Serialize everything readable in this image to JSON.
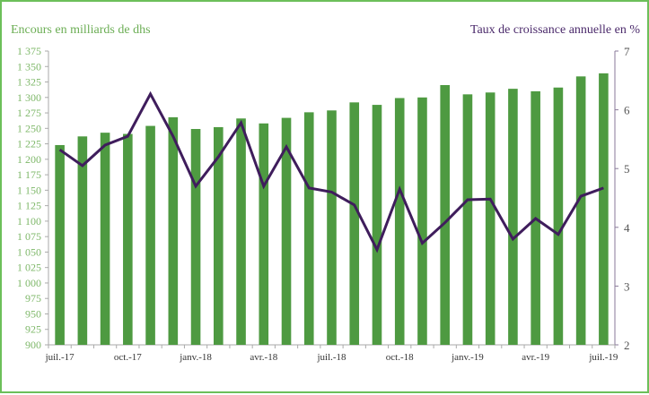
{
  "chart_data": {
    "type": "bar+line",
    "ylabel_left": "Encours en milliards de dhs",
    "ylabel_right": "Taux de croissance annuelle en %",
    "ylim_left": [
      900,
      1375
    ],
    "ylim_right": [
      2,
      7
    ],
    "yticks_left": [
      "900",
      "925",
      "950",
      "975",
      "1 000",
      "1 025",
      "1 050",
      "1 075",
      "1 100",
      "1 125",
      "1 150",
      "1 175",
      "1 200",
      "1 225",
      "1 250",
      "1 275",
      "1 300",
      "1 325",
      "1 350",
      "1 375"
    ],
    "yticks_right": [
      "2",
      "3",
      "4",
      "5",
      "6",
      "7"
    ],
    "x_tick_labels": [
      "juil.-17",
      "oct.-17",
      "janv.-18",
      "avr.-18",
      "juil.-18",
      "oct.-18",
      "janv.-19",
      "avr.-19",
      "juil.-19"
    ],
    "categories": [
      "juil.-17",
      "août-17",
      "sept.-17",
      "oct.-17",
      "nov.-17",
      "déc.-17",
      "janv.-18",
      "févr.-18",
      "mars-18",
      "avr.-18",
      "mai-18",
      "juin-18",
      "juil.-18",
      "août-18",
      "sept.-18",
      "oct.-18",
      "nov.-18",
      "déc.-18",
      "janv.-19",
      "févr.-19",
      "mars-19",
      "avr.-19",
      "mai-19",
      "juin-19",
      "juil.-19"
    ],
    "series": [
      {
        "type": "bar",
        "axis": "left",
        "color": "#4e9a41",
        "values": [
          1223,
          1237,
          1243,
          1241,
          1254,
          1268,
          1249,
          1252,
          1266,
          1258,
          1267,
          1276,
          1279,
          1292,
          1288,
          1299,
          1300,
          1320,
          1305,
          1308,
          1314,
          1310,
          1316,
          1334,
          1339
        ]
      },
      {
        "type": "line",
        "axis": "right",
        "color": "#3f1d5c",
        "values": [
          5.32,
          5.05,
          5.4,
          5.55,
          6.27,
          5.55,
          4.7,
          5.2,
          5.78,
          4.7,
          5.37,
          4.67,
          4.6,
          4.38,
          3.62,
          4.65,
          3.73,
          4.08,
          4.47,
          4.48,
          3.8,
          4.15,
          3.88,
          4.53,
          4.67
        ]
      }
    ],
    "grid": false,
    "legend": "none"
  }
}
